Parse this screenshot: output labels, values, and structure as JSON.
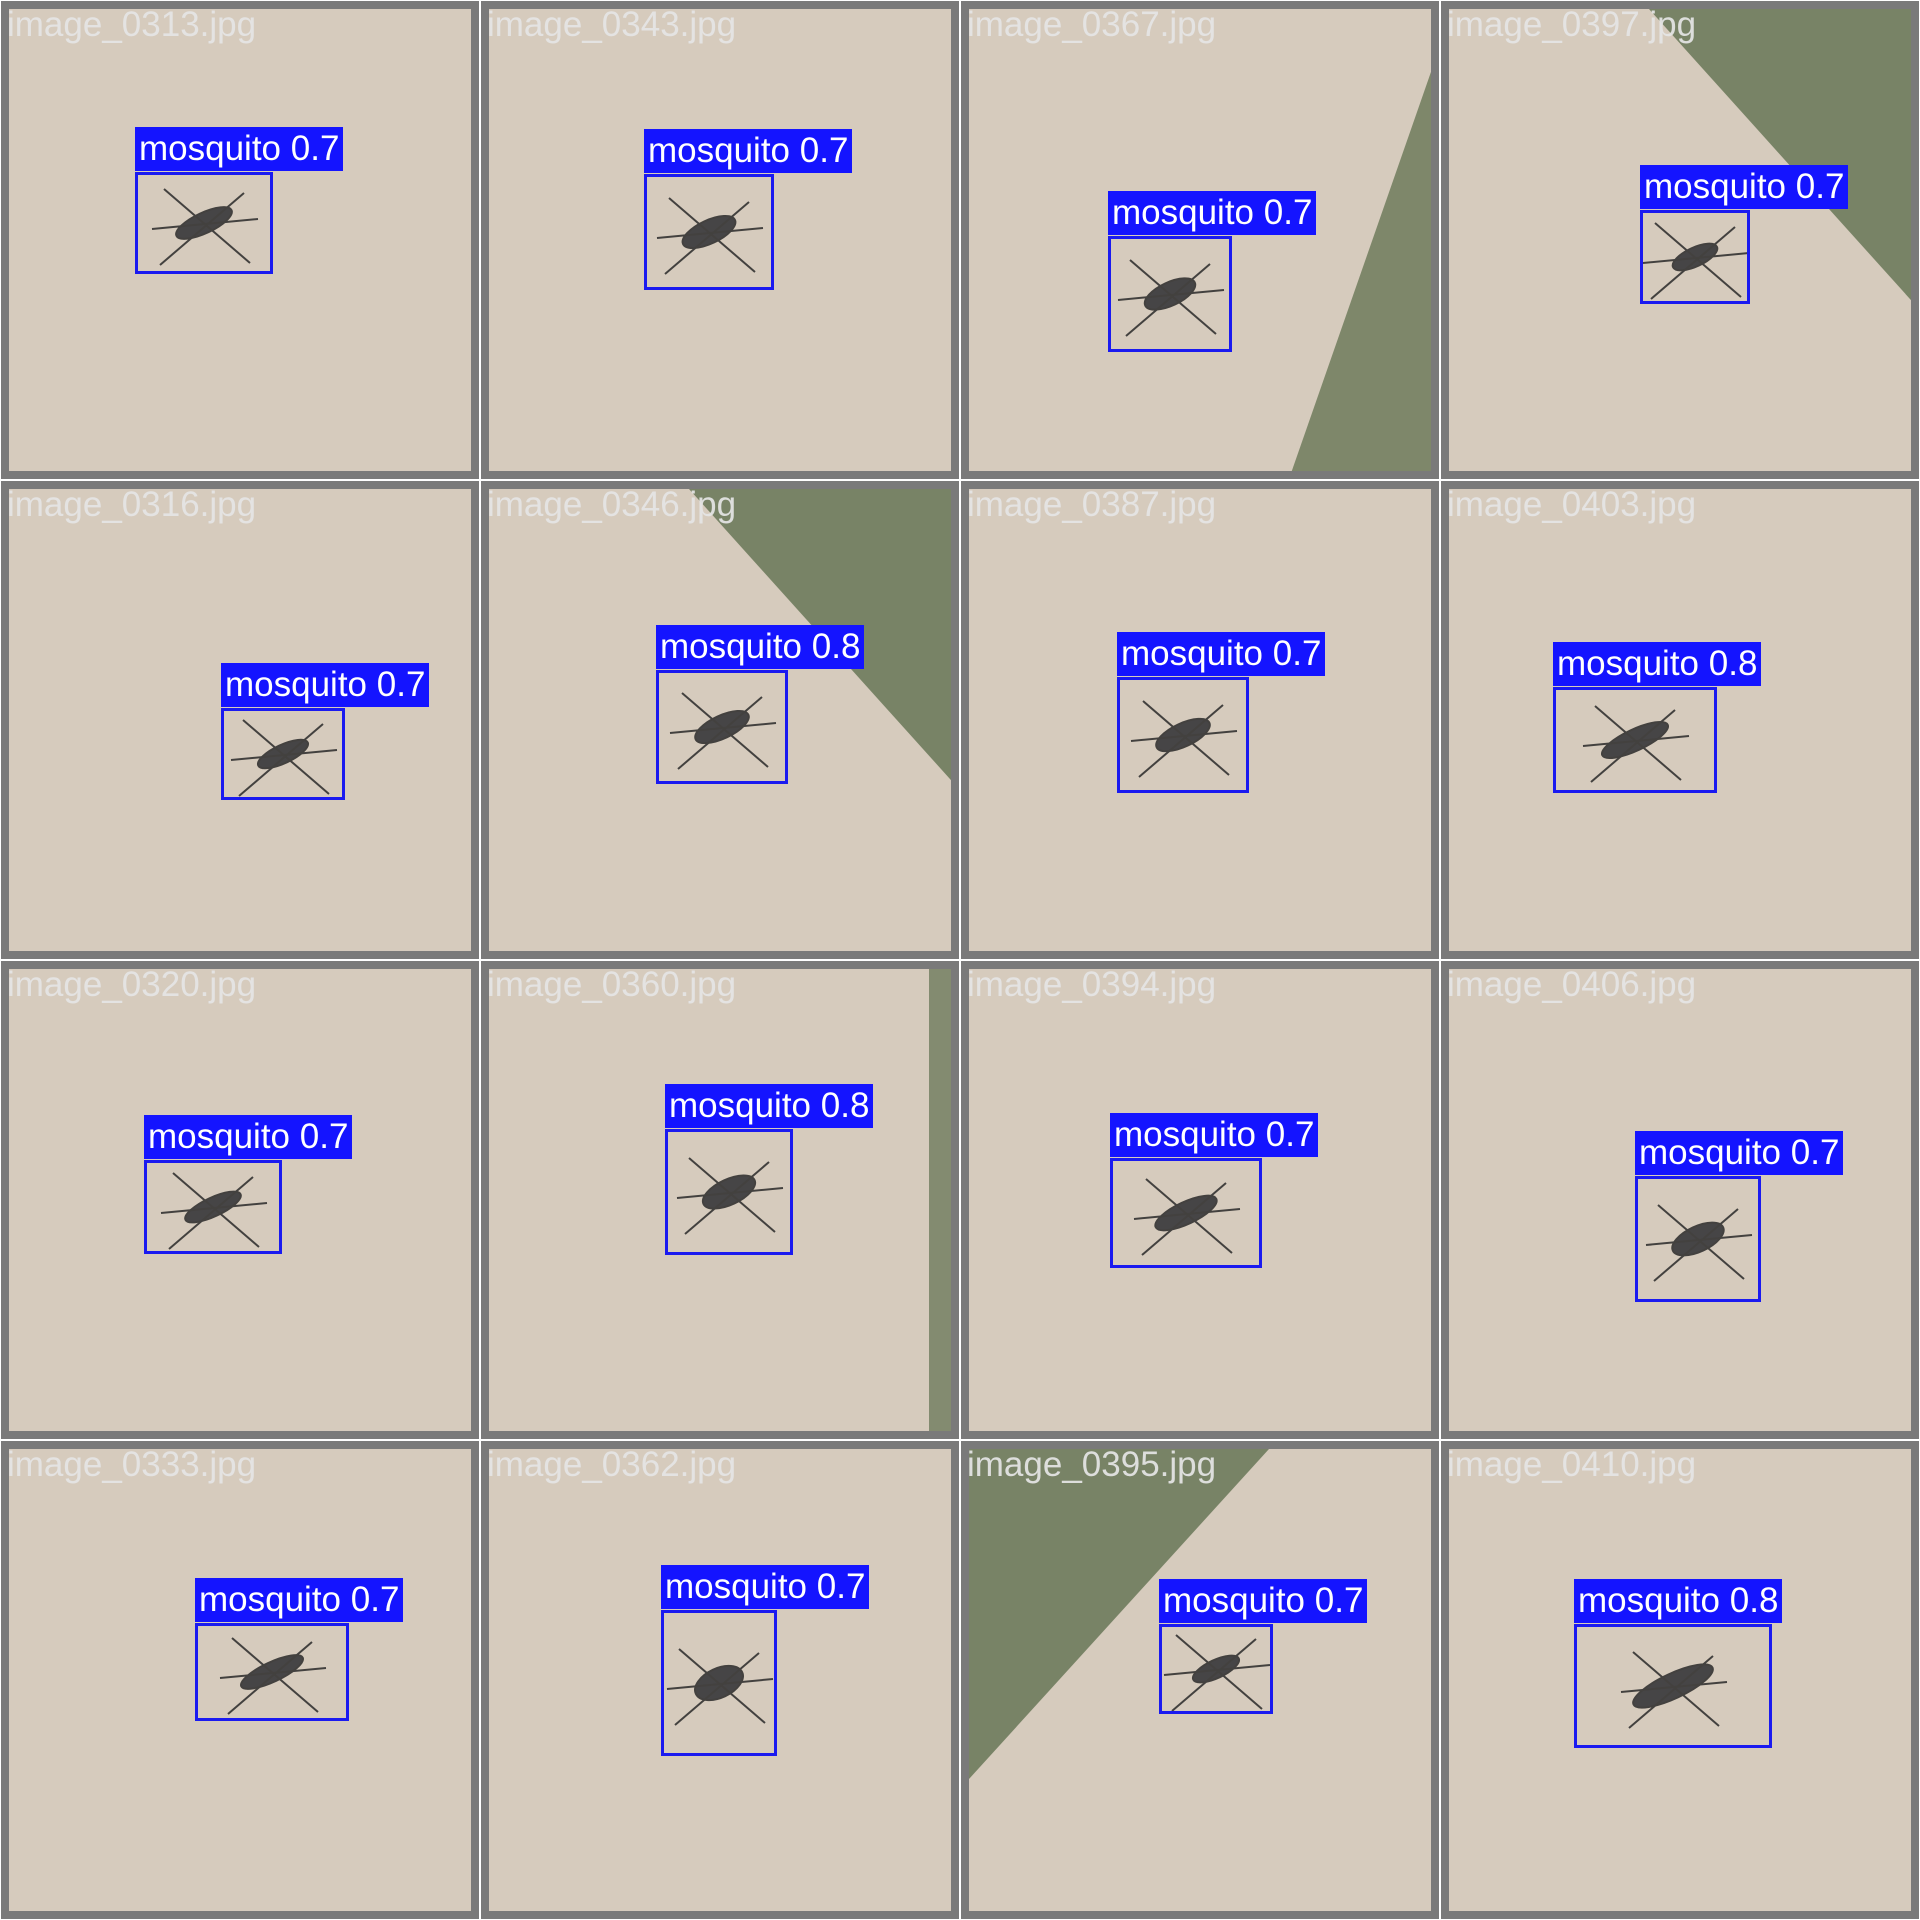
{
  "tiles": [
    {
      "filename": "image_0313.jpg",
      "label": "mosquito",
      "confidence": "0.7",
      "bg": "skin"
    },
    {
      "filename": "image_0343.jpg",
      "label": "mosquito",
      "confidence": "0.7",
      "bg": "skin"
    },
    {
      "filename": "image_0367.jpg",
      "label": "mosquito",
      "confidence": "0.7",
      "bg": "skin-green-br"
    },
    {
      "filename": "image_0397.jpg",
      "label": "mosquito",
      "confidence": "0.7",
      "bg": "skin-green-tr"
    },
    {
      "filename": "image_0316.jpg",
      "label": "mosquito",
      "confidence": "0.7",
      "bg": "skin"
    },
    {
      "filename": "image_0346.jpg",
      "label": "mosquito",
      "confidence": "0.8",
      "bg": "skin-green-tr"
    },
    {
      "filename": "image_0387.jpg",
      "label": "mosquito",
      "confidence": "0.7",
      "bg": "skin"
    },
    {
      "filename": "image_0403.jpg",
      "label": "mosquito",
      "confidence": "0.8",
      "bg": "skin"
    },
    {
      "filename": "image_0320.jpg",
      "label": "mosquito",
      "confidence": "0.7",
      "bg": "skin"
    },
    {
      "filename": "image_0360.jpg",
      "label": "mosquito",
      "confidence": "0.8",
      "bg": "skin-green-r"
    },
    {
      "filename": "image_0394.jpg",
      "label": "mosquito",
      "confidence": "0.7",
      "bg": "skin"
    },
    {
      "filename": "image_0406.jpg",
      "label": "mosquito",
      "confidence": "0.7",
      "bg": "skin"
    },
    {
      "filename": "image_0333.jpg",
      "label": "mosquito",
      "confidence": "0.7",
      "bg": "skin"
    },
    {
      "filename": "image_0362.jpg",
      "label": "mosquito",
      "confidence": "0.7",
      "bg": "skin"
    },
    {
      "filename": "image_0395.jpg",
      "label": "mosquito",
      "confidence": "0.7",
      "bg": "skin-green-tl"
    },
    {
      "filename": "image_0410.jpg",
      "label": "mosquito",
      "confidence": "0.8",
      "bg": "skin"
    }
  ],
  "colors": {
    "box": "#1a1af0",
    "label_bg": "#1414ff",
    "label_text": "#ffffff",
    "filename_text": "#e6e6e6",
    "tile_border": "#7a7a7a",
    "skin": "#d6cbbd",
    "background_green": "#6e7b5c"
  }
}
